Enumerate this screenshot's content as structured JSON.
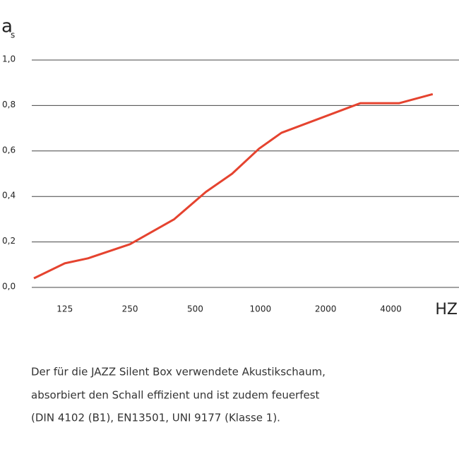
{
  "chart_data": {
    "type": "line",
    "y_label": "a",
    "y_label_sub": "s",
    "x_label": "HZ",
    "x": [
      90,
      125,
      160,
      250,
      400,
      560,
      740,
      985,
      1250,
      2890,
      4360,
      6240
    ],
    "series": [
      {
        "name": "as",
        "color": "#e5432f",
        "values": [
          0.04,
          0.106,
          0.128,
          0.19,
          0.3,
          0.42,
          0.5,
          0.61,
          0.68,
          0.81,
          0.81,
          0.85
        ]
      }
    ],
    "xlim": [
      88,
      8250
    ],
    "xscale": "log",
    "xticks": [
      125,
      250,
      500,
      1000,
      2000,
      4000
    ],
    "ylim": [
      0,
      1
    ],
    "yticks": [
      {
        "value": 0,
        "label": "0,0"
      },
      {
        "value": 0.2,
        "label": "0,2"
      },
      {
        "value": 0.4,
        "label": "0,4"
      },
      {
        "value": 0.6,
        "label": "0,6"
      },
      {
        "value": 0.8,
        "label": "0,8"
      },
      {
        "value": 1,
        "label": "1,0"
      }
    ],
    "grid": true
  },
  "description": [
    "Der für die JAZZ Silent Box verwendete Akustikschaum,",
    "absorbiert den Schall effizient und ist zudem feuerfest",
    "(DIN 4102 (B1), EN13501, UNI 9177 (Klasse 1)."
  ]
}
